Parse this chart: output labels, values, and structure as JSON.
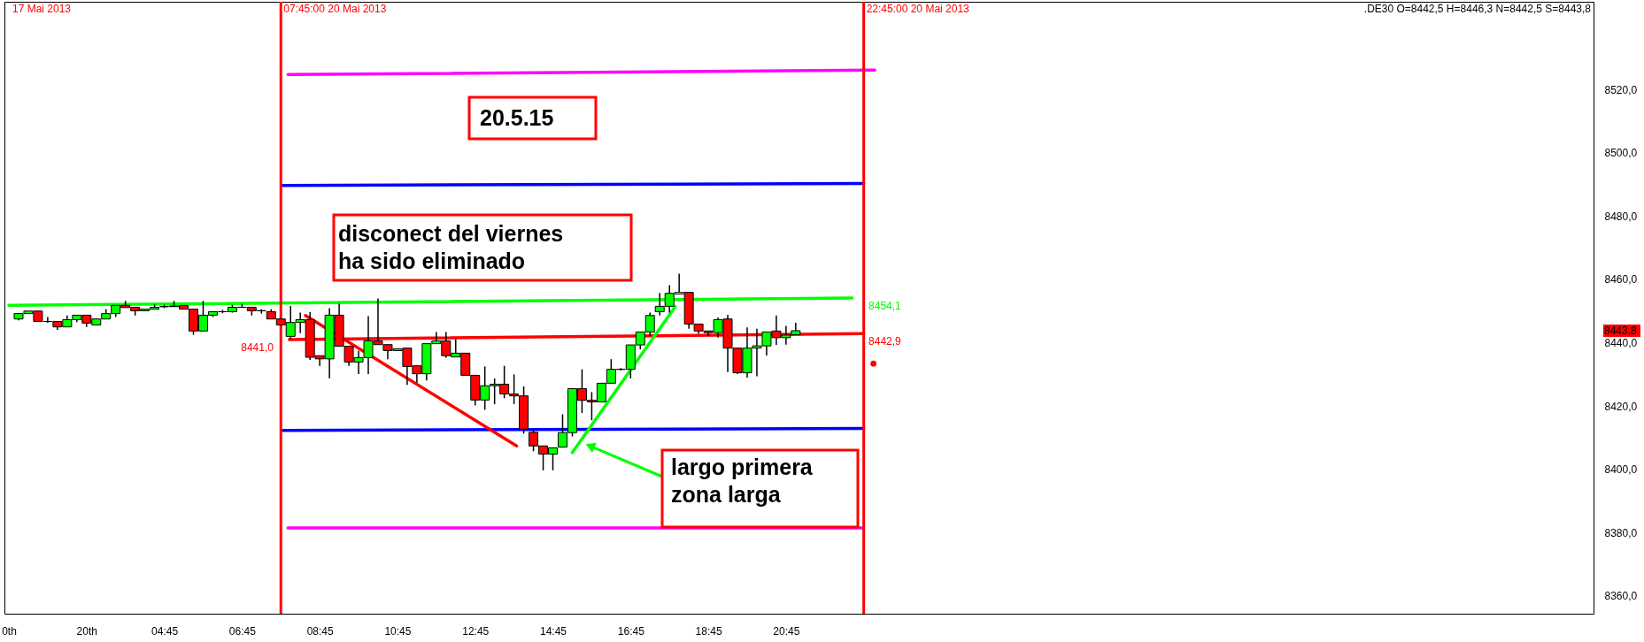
{
  "chart_data": {
    "type": "candlestick",
    "x": [
      "2013-05-20T01:00",
      "2013-05-20T01:15",
      "2013-05-20T01:30",
      "2013-05-20T01:45",
      "2013-05-20T02:00",
      "2013-05-20T02:15",
      "2013-05-20T02:30",
      "2013-05-20T02:45",
      "2013-05-20T03:00",
      "2013-05-20T03:15",
      "2013-05-20T03:30",
      "2013-05-20T03:45",
      "2013-05-20T04:00",
      "2013-05-20T04:15",
      "2013-05-20T04:30",
      "2013-05-20T04:45",
      "2013-05-20T05:00",
      "2013-05-20T05:15",
      "2013-05-20T05:30",
      "2013-05-20T05:45",
      "2013-05-20T06:00",
      "2013-05-20T06:15",
      "2013-05-20T06:30",
      "2013-05-20T06:45",
      "2013-05-20T07:00",
      "2013-05-20T07:15",
      "2013-05-20T07:30",
      "2013-05-20T07:45",
      "2013-05-20T08:00",
      "2013-05-20T08:15",
      "2013-05-20T08:30",
      "2013-05-20T08:45",
      "2013-05-20T09:00",
      "2013-05-20T09:15",
      "2013-05-20T09:30",
      "2013-05-20T09:45",
      "2013-05-20T10:00",
      "2013-05-20T10:15",
      "2013-05-20T10:30",
      "2013-05-20T10:45",
      "2013-05-20T11:00",
      "2013-05-20T11:15",
      "2013-05-20T11:30",
      "2013-05-20T11:45",
      "2013-05-20T12:00",
      "2013-05-20T12:15",
      "2013-05-20T12:30",
      "2013-05-20T12:45",
      "2013-05-20T13:00",
      "2013-05-20T13:15",
      "2013-05-20T13:30",
      "2013-05-20T13:45",
      "2013-05-20T14:00",
      "2013-05-20T14:15",
      "2013-05-20T14:30",
      "2013-05-20T14:45",
      "2013-05-20T15:00",
      "2013-05-20T15:15",
      "2013-05-20T15:30",
      "2013-05-20T15:45",
      "2013-05-20T16:00",
      "2013-05-20T16:15",
      "2013-05-20T16:30",
      "2013-05-20T16:45",
      "2013-05-20T17:00",
      "2013-05-20T17:15",
      "2013-05-20T17:30",
      "2013-05-20T17:45",
      "2013-05-20T18:00",
      "2013-05-20T18:15",
      "2013-05-20T18:30",
      "2013-05-20T18:45",
      "2013-05-20T19:00",
      "2013-05-20T19:15",
      "2013-05-20T19:30",
      "2013-05-20T19:45",
      "2013-05-20T20:00",
      "2013-05-20T20:15",
      "2013-05-20T20:30",
      "2013-05-20T20:45",
      "2013-05-20T21:00"
    ],
    "ohlc": [
      [
        8447.5,
        8449.2,
        8447.1,
        8449.2
      ],
      [
        8449.2,
        8450.0,
        8449.2,
        8450.0
      ],
      [
        8450.0,
        8450.0,
        8446.7,
        8446.7
      ],
      [
        8446.7,
        8448.1,
        8446.3,
        8446.7
      ],
      [
        8446.7,
        8446.7,
        8444.1,
        8445.0
      ],
      [
        8445.0,
        8448.6,
        8445.0,
        8447.3
      ],
      [
        8447.3,
        8448.7,
        8446.5,
        8448.7
      ],
      [
        8448.7,
        8448.7,
        8445.0,
        8446.2
      ],
      [
        8445.6,
        8447.5,
        8445.6,
        8447.5
      ],
      [
        8447.5,
        8450.6,
        8447.5,
        8449.2
      ],
      [
        8449.2,
        8451.8,
        8448.1,
        8451.8
      ],
      [
        8451.8,
        8453.2,
        8451.1,
        8451.1
      ],
      [
        8451.2,
        8451.2,
        8448.6,
        8450.1
      ],
      [
        8450.1,
        8450.6,
        8450.1,
        8450.6
      ],
      [
        8450.6,
        8452.1,
        8450.6,
        8451.2
      ],
      [
        8451.4,
        8452.0,
        8450.9,
        8451.4
      ],
      [
        8451.4,
        8453.2,
        8451.4,
        8451.6
      ],
      [
        8451.7,
        8451.7,
        8450.6,
        8450.6
      ],
      [
        8450.6,
        8450.6,
        8442.5,
        8443.7
      ],
      [
        8443.7,
        8453.2,
        8443.7,
        8448.7
      ],
      [
        8448.7,
        8449.8,
        8448.1,
        8449.8
      ],
      [
        8449.8,
        8450.4,
        8449.3,
        8449.8
      ],
      [
        8449.8,
        8452.0,
        8449.5,
        8451.2
      ],
      [
        8451.2,
        8452.3,
        8451.2,
        8451.2
      ],
      [
        8451.2,
        8451.2,
        8448.6,
        8450.1
      ],
      [
        8450.1,
        8450.6,
        8449.2,
        8450.1
      ],
      [
        8449.8,
        8450.6,
        8447.5,
        8447.5
      ],
      [
        8447.5,
        8447.5,
        8445.6,
        8445.6
      ],
      [
        8442.0,
        8451.6,
        8441.1,
        8446.4
      ],
      [
        8446.4,
        8449.5,
        8443.0,
        8447.3
      ],
      [
        8447.3,
        8449.7,
        8434.6,
        8435.4
      ],
      [
        8435.9,
        8435.9,
        8432.7,
        8434.9
      ],
      [
        8434.9,
        8450.9,
        8428.8,
        8448.7
      ],
      [
        8448.7,
        8452.3,
        8438.9,
        8438.9
      ],
      [
        8438.9,
        8438.9,
        8432.7,
        8433.9
      ],
      [
        8433.9,
        8437.4,
        8430.1,
        8435.3
      ],
      [
        8435.3,
        8448.4,
        8430.1,
        8440.6
      ],
      [
        8440.6,
        8454.0,
        8439.4,
        8439.4
      ],
      [
        8439.4,
        8439.4,
        8434.8,
        8437.5
      ],
      [
        8437.5,
        8438.1,
        8437.5,
        8438.1
      ],
      [
        8438.3,
        8438.3,
        8426.7,
        8432.5
      ],
      [
        8432.7,
        8432.7,
        8427.4,
        8430.2
      ],
      [
        8430.2,
        8439.7,
        8428.1,
        8439.7
      ],
      [
        8439.7,
        8443.4,
        8439.7,
        8440.6
      ],
      [
        8440.6,
        8443.4,
        8435.3,
        8435.9
      ],
      [
        8435.5,
        8441.1,
        8435.5,
        8436.7
      ],
      [
        8436.7,
        8436.7,
        8429.7,
        8429.7
      ],
      [
        8429.7,
        8429.7,
        8420.2,
        8421.9
      ],
      [
        8421.9,
        8432.5,
        8418.8,
        8426.4
      ],
      [
        8426.4,
        8428.7,
        8420.6,
        8426.9
      ],
      [
        8426.9,
        8432.7,
        8422.5,
        8423.8
      ],
      [
        8423.8,
        8430.0,
        8420.6,
        8423.2
      ],
      [
        8423.2,
        8426.2,
        8411.3,
        8412.7
      ],
      [
        8411.7,
        8412.7,
        8405.7,
        8407.4
      ],
      [
        8407.4,
        8407.4,
        8399.7,
        8404.8
      ],
      [
        8404.8,
        8406.8,
        8399.7,
        8406.8
      ],
      [
        8407.0,
        8417.4,
        8407.0,
        8411.6
      ],
      [
        8411.6,
        8425.5,
        8410.4,
        8425.5
      ],
      [
        8425.5,
        8431.6,
        8417.8,
        8421.8
      ],
      [
        8421.8,
        8424.4,
        8415.5,
        8421.3
      ],
      [
        8421.3,
        8427.2,
        8421.3,
        8427.2
      ],
      [
        8427.2,
        8434.8,
        8427.2,
        8431.6
      ],
      [
        8431.6,
        8432.0,
        8431.2,
        8431.6
      ],
      [
        8431.6,
        8439.3,
        8428.7,
        8439.3
      ],
      [
        8439.3,
        8443.4,
        8437.9,
        8443.4
      ],
      [
        8443.4,
        8449.5,
        8442.1,
        8448.6
      ],
      [
        8449.8,
        8455.7,
        8448.6,
        8451.5
      ],
      [
        8451.5,
        8458.2,
        8449.5,
        8455.6
      ],
      [
        8455.4,
        8461.8,
        8455.4,
        8455.9
      ],
      [
        8455.9,
        8455.9,
        8444.4,
        8445.9
      ],
      [
        8445.9,
        8445.9,
        8442.8,
        8443.7
      ],
      [
        8443.7,
        8443.7,
        8442.1,
        8443.2
      ],
      [
        8443.2,
        8448.0,
        8441.6,
        8447.3
      ],
      [
        8447.5,
        8448.8,
        8430.7,
        8438.3
      ],
      [
        8438.3,
        8438.3,
        8430.1,
        8430.5
      ],
      [
        8430.5,
        8444.8,
        8429.0,
        8438.3
      ],
      [
        8438.3,
        8444.4,
        8429.4,
        8439.0
      ],
      [
        8439.0,
        8443.4,
        8436.0,
        8443.4
      ],
      [
        8443.7,
        8448.6,
        8439.3,
        8441.6
      ],
      [
        8441.6,
        8445.3,
        8439.4,
        8442.4
      ],
      [
        8442.5,
        8446.3,
        8442.5,
        8443.8
      ]
    ],
    "colors": [
      "#00ff00",
      "#00ff00",
      "#ff0000",
      "#000000",
      "#ff0000",
      "#00ff00",
      "#00ff00",
      "#ff0000",
      "#00ff00",
      "#00ff00",
      "#00ff00",
      "#ff0000",
      "#ff0000",
      "#00ff00",
      "#00ff00",
      "#000000",
      "#00ff00",
      "#ff0000",
      "#ff0000",
      "#00ff00",
      "#00ff00",
      "#000000",
      "#00ff00",
      "#000000",
      "#ff0000",
      "#000000",
      "#ff0000",
      "#ff0000",
      "#00ff00",
      "#00ff00",
      "#ff0000",
      "#ff0000",
      "#00ff00",
      "#ff0000",
      "#ff0000",
      "#00ff00",
      "#00ff00",
      "#ff0000",
      "#ff0000",
      "#00ff00",
      "#ff0000",
      "#ff0000",
      "#00ff00",
      "#00ff00",
      "#ff0000",
      "#00ff00",
      "#ff0000",
      "#ff0000",
      "#00ff00",
      "#00ff00",
      "#ff0000",
      "#ff0000",
      "#ff0000",
      "#ff0000",
      "#ff0000",
      "#00ff00",
      "#00ff00",
      "#00ff00",
      "#ff0000",
      "#ff0000",
      "#00ff00",
      "#00ff00",
      "#000000",
      "#00ff00",
      "#00ff00",
      "#00ff00",
      "#00ff00",
      "#00ff00",
      "#ffffff",
      "#ff0000",
      "#ff0000",
      "#ff0000",
      "#00ff00",
      "#ff0000",
      "#ff0000",
      "#00ff00",
      "#00ff00",
      "#00ff00",
      "#ff0000",
      "#00ff00",
      "#00ff00"
    ],
    "series": [
      {
        "type": "line",
        "color": "#ff00ff",
        "x": [
          "2013-05-20T07:56",
          "2013-05-20T23:02"
        ],
        "values": [
          8524.7,
          8526.1
        ]
      },
      {
        "type": "line",
        "color": "#0000ff",
        "x": [
          "2013-05-20T07:48",
          "2013-05-20T22:45"
        ],
        "values": [
          8489.7,
          8490.3
        ]
      },
      {
        "type": "line",
        "color": "#00ff00",
        "x": [
          "2013-05-20T00:45",
          "2013-05-20T22:27"
        ],
        "values": [
          8451.8,
          8454.1
        ],
        "value_labels": [
          null,
          "8454,1"
        ]
      },
      {
        "type": "line",
        "color": "#ff0000",
        "x": [
          "2013-05-20T07:58",
          "2013-05-20T22:45"
        ],
        "values": [
          8441.0,
          8442.9
        ],
        "value_labels": [
          "8441,0",
          "8442,9"
        ]
      },
      {
        "type": "line",
        "color": "#0000ff",
        "x": [
          "2013-05-20T07:48",
          "2013-05-20T22:45"
        ],
        "values": [
          8412.3,
          8412.9
        ]
      },
      {
        "type": "line",
        "color": "#ff00ff",
        "x": [
          "2013-05-20T07:56",
          "2013-05-20T22:45"
        ],
        "values": [
          8381.5,
          8381.5
        ]
      },
      {
        "type": "line",
        "color": "#ff0000",
        "x": [
          "2013-05-20T08:23",
          "2013-05-20T13:49"
        ],
        "values": [
          8448.6,
          8407.4
        ]
      },
      {
        "type": "line",
        "color": "#00ff00",
        "x": [
          "2013-05-20T15:15",
          "2013-05-20T17:54"
        ],
        "values": [
          8405.3,
          8451.4
        ]
      },
      {
        "type": "scatter",
        "color": "#ff0000",
        "marker": "circle",
        "x": [
          "2013-05-20T23:00"
        ],
        "values": [
          8433.4
        ]
      }
    ],
    "xlim": [
      "2013-05-20T00:45",
      "2013-05-21T17:25"
    ],
    "ylim": [
      8354.4,
      8547.7
    ],
    "xticks": [
      {
        "value": "2013-05-20T00:45",
        "label": "0th"
      },
      {
        "value": "2013-05-20T02:45",
        "label": "20th"
      },
      {
        "value": "2013-05-20T04:45",
        "label": "04:45"
      },
      {
        "value": "2013-05-20T06:45",
        "label": "06:45"
      },
      {
        "value": "2013-05-20T08:45",
        "label": "08:45"
      },
      {
        "value": "2013-05-20T10:45",
        "label": "10:45"
      },
      {
        "value": "2013-05-20T12:45",
        "label": "12:45"
      },
      {
        "value": "2013-05-20T14:45",
        "label": "14:45"
      },
      {
        "value": "2013-05-20T16:45",
        "label": "16:45"
      },
      {
        "value": "2013-05-20T18:45",
        "label": "18:45"
      },
      {
        "value": "2013-05-20T20:45",
        "label": "20:45"
      }
    ],
    "yticks": [
      {
        "value": 8360,
        "label": "8360,0"
      },
      {
        "value": 8380,
        "label": "8380,0"
      },
      {
        "value": 8400,
        "label": "8400,0"
      },
      {
        "value": 8420,
        "label": "8420,0"
      },
      {
        "value": 8440,
        "label": "8440,0"
      },
      {
        "value": 8460,
        "label": "8460,0"
      },
      {
        "value": 8480,
        "label": "8480,0"
      },
      {
        "value": 8500,
        "label": "8500,0"
      },
      {
        "value": 8520,
        "label": "8520,0"
      }
    ],
    "ref_lines": [
      {
        "axis": "x",
        "value": "2013-05-20T07:45",
        "label": "07:45:00 20 Mai 2013",
        "color": "#ff0000"
      },
      {
        "axis": "x",
        "value": "2013-05-20T22:45",
        "label": "22:45:00 20 Mai 2013",
        "color": "#ff0000"
      }
    ],
    "annotations": [
      "17 Mai 2013",
      ".DE30 O=8442,5 H=8446,3 N=8442,5 S=8443,8",
      "20.5.15",
      "disconect del viernes\nha sido eliminado",
      "largo primera\nzona larga",
      "8443,8"
    ]
  }
}
